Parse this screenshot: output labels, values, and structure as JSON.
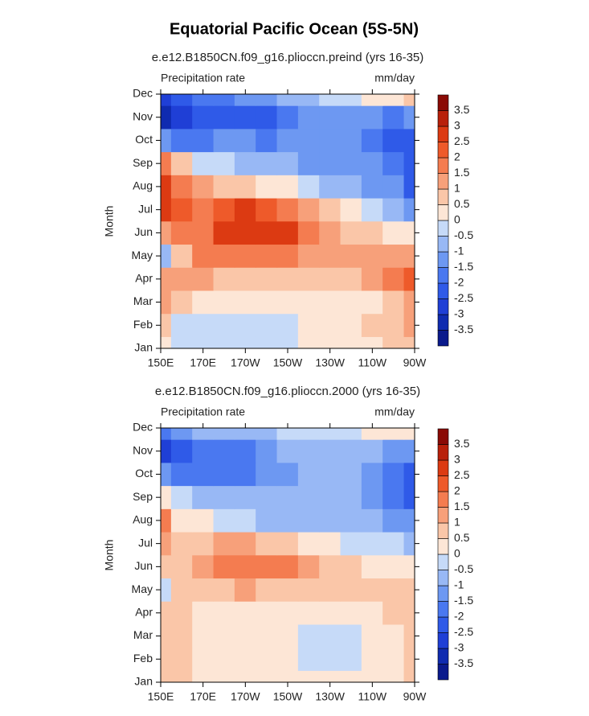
{
  "title": "Equatorial Pacific Ocean (5S-5N)",
  "chart_data": [
    {
      "type": "contour",
      "title": "e.e12.B1850CN.f09_g16.plioccn.preind (yrs 16-35)",
      "left_label": "Precipitation rate",
      "right_label": "mm/day",
      "ylabel": "Month",
      "categories": [
        "Jan",
        "Feb",
        "Mar",
        "Apr",
        "May",
        "Jun",
        "Jul",
        "Aug",
        "Sep",
        "Oct",
        "Nov",
        "Dec"
      ],
      "x": [
        150,
        160,
        170,
        180,
        190,
        200,
        210,
        220,
        230,
        240,
        250,
        260,
        270
      ],
      "xlim": [
        150,
        270
      ],
      "xticks": [
        {
          "value": 150,
          "label": "150E"
        },
        {
          "value": 170,
          "label": "170E"
        },
        {
          "value": 190,
          "label": "170W"
        },
        {
          "value": 210,
          "label": "150W"
        },
        {
          "value": 230,
          "label": "130W"
        },
        {
          "value": 250,
          "label": "110W"
        },
        {
          "value": 270,
          "label": "90W"
        }
      ],
      "levels": [
        -3.5,
        -3,
        -2.5,
        -2,
        -1.5,
        -1,
        -0.5,
        0,
        0.5,
        1,
        1.5,
        2,
        2.5,
        3,
        3.5
      ],
      "colors": [
        "#0a1a8c",
        "#0f2bb0",
        "#1f3fd6",
        "#2f5ae8",
        "#4a78f0",
        "#6d98f2",
        "#98b8f5",
        "#c6daf8",
        "#fde6d6",
        "#fac6a8",
        "#f7a07a",
        "#f47c50",
        "#ee5a2a",
        "#dc3a12",
        "#b8200a",
        "#8a0a05"
      ],
      "z": [
        [
          0.2,
          -0.3,
          -0.3,
          -0.2,
          -0.2,
          -0.2,
          -0.2,
          0.2,
          0.3,
          0.4,
          0.5,
          0.7,
          0.9
        ],
        [
          0.6,
          -0.3,
          -0.3,
          -0.2,
          -0.3,
          -0.3,
          -0.2,
          0.2,
          0.4,
          0.5,
          0.6,
          0.8,
          1.1
        ],
        [
          1.2,
          0.8,
          0.4,
          0.3,
          0.2,
          0.3,
          0.3,
          0.4,
          0.4,
          0.4,
          0.5,
          0.8,
          1.2
        ],
        [
          1.2,
          1.4,
          1.2,
          1.0,
          0.8,
          0.7,
          0.7,
          0.8,
          0.9,
          1.0,
          1.2,
          1.6,
          2.2
        ],
        [
          -0.7,
          0.8,
          1.6,
          1.8,
          1.8,
          1.7,
          1.6,
          1.5,
          1.4,
          1.3,
          1.2,
          1.3,
          1.5
        ],
        [
          1.2,
          1.6,
          2.0,
          2.6,
          3.0,
          3.0,
          2.6,
          2.0,
          1.4,
          0.9,
          0.6,
          0.4,
          0.3
        ],
        [
          2.8,
          2.4,
          2.0,
          2.4,
          2.6,
          2.2,
          1.8,
          1.2,
          0.6,
          0.2,
          -0.2,
          -0.6,
          -1.0
        ],
        [
          3.0,
          2.0,
          1.2,
          0.8,
          0.6,
          0.4,
          0.1,
          -0.3,
          -0.6,
          -0.8,
          -1.0,
          -1.4,
          -2.2
        ],
        [
          1.8,
          0.6,
          -0.2,
          -0.4,
          -0.6,
          -0.8,
          -0.9,
          -1.0,
          -1.1,
          -1.2,
          -1.4,
          -1.8,
          -2.2
        ],
        [
          -1.2,
          -1.6,
          -1.5,
          -1.4,
          -1.4,
          -1.6,
          -1.3,
          -1.2,
          -1.2,
          -1.3,
          -1.5,
          -2.0,
          -2.3
        ],
        [
          -3.4,
          -2.6,
          -2.2,
          -2.3,
          -2.3,
          -2.2,
          -1.6,
          -1.2,
          -1.0,
          -1.1,
          -1.4,
          -1.6,
          -1.4
        ],
        [
          -2.5,
          -2.2,
          -1.8,
          -1.6,
          -1.3,
          -1.0,
          -0.7,
          -0.5,
          -0.3,
          -0.1,
          0.2,
          0.4,
          0.6
        ]
      ]
    },
    {
      "type": "contour",
      "title": "e.e12.B1850CN.f09_g16.plioccn.2000 (yrs 16-35)",
      "left_label": "Precipitation rate",
      "right_label": "mm/day",
      "ylabel": "Month",
      "categories": [
        "Jan",
        "Feb",
        "Mar",
        "Apr",
        "May",
        "Jun",
        "Jul",
        "Aug",
        "Sep",
        "Oct",
        "Nov",
        "Dec"
      ],
      "x": [
        150,
        160,
        170,
        180,
        190,
        200,
        210,
        220,
        230,
        240,
        250,
        260,
        270
      ],
      "xlim": [
        150,
        270
      ],
      "xticks": [
        {
          "value": 150,
          "label": "150E"
        },
        {
          "value": 170,
          "label": "170E"
        },
        {
          "value": 190,
          "label": "170W"
        },
        {
          "value": 210,
          "label": "150W"
        },
        {
          "value": 230,
          "label": "130W"
        },
        {
          "value": 250,
          "label": "110W"
        },
        {
          "value": 270,
          "label": "90W"
        }
      ],
      "levels": [
        -3.5,
        -3,
        -2.5,
        -2,
        -1.5,
        -1,
        -0.5,
        0,
        0.5,
        1,
        1.5,
        2,
        2.5,
        3,
        3.5
      ],
      "colors": [
        "#0a1a8c",
        "#0f2bb0",
        "#1f3fd6",
        "#2f5ae8",
        "#4a78f0",
        "#6d98f2",
        "#98b8f5",
        "#c6daf8",
        "#fde6d6",
        "#fac6a8",
        "#f7a07a",
        "#f47c50",
        "#ee5a2a",
        "#dc3a12",
        "#b8200a",
        "#8a0a05"
      ],
      "z": [
        [
          0.7,
          0.6,
          0.3,
          0.3,
          0.3,
          0.3,
          0.3,
          0.3,
          0.3,
          0.3,
          0.3,
          0.4,
          0.6
        ],
        [
          0.8,
          0.7,
          0.4,
          0.3,
          0.3,
          0.3,
          0.2,
          -0.2,
          -0.2,
          -0.1,
          0.3,
          0.5,
          0.7
        ],
        [
          0.8,
          0.6,
          0.4,
          0.3,
          0.3,
          0.2,
          0.1,
          -0.3,
          -0.3,
          -0.2,
          0.3,
          0.5,
          0.8
        ],
        [
          0.6,
          0.6,
          0.5,
          0.4,
          0.4,
          0.4,
          0.4,
          0.4,
          0.4,
          0.4,
          0.5,
          0.6,
          0.8
        ],
        [
          -0.3,
          0.6,
          0.8,
          1.0,
          1.1,
          1.0,
          1.0,
          0.9,
          0.8,
          0.7,
          0.6,
          0.7,
          0.8
        ],
        [
          0.7,
          0.8,
          1.2,
          1.8,
          1.8,
          1.7,
          1.6,
          1.2,
          0.8,
          0.6,
          0.4,
          0.3,
          0.3
        ],
        [
          1.2,
          0.8,
          0.6,
          1.2,
          1.1,
          0.9,
          0.6,
          0.4,
          0.2,
          -0.2,
          -0.3,
          -0.4,
          -0.5
        ],
        [
          1.8,
          0.4,
          0.2,
          -0.3,
          -0.4,
          -0.5,
          -0.6,
          -0.7,
          -0.8,
          -0.8,
          -0.9,
          -1.1,
          -1.4
        ],
        [
          0.5,
          -0.4,
          -0.7,
          -0.7,
          -0.6,
          -0.7,
          -0.8,
          -0.8,
          -0.8,
          -0.9,
          -1.1,
          -1.6,
          -2.2
        ],
        [
          -1.2,
          -1.6,
          -1.7,
          -1.6,
          -1.6,
          -1.3,
          -1.0,
          -0.9,
          -0.8,
          -0.9,
          -1.2,
          -1.7,
          -2.2
        ],
        [
          -2.6,
          -2.0,
          -1.9,
          -1.9,
          -1.8,
          -1.4,
          -0.8,
          -0.6,
          -0.5,
          -0.6,
          -0.8,
          -1.2,
          -1.3
        ],
        [
          -1.8,
          -1.2,
          -0.9,
          -0.7,
          -0.6,
          -0.5,
          -0.4,
          -0.3,
          -0.2,
          -0.1,
          0.1,
          0.3,
          0.5
        ]
      ]
    }
  ]
}
